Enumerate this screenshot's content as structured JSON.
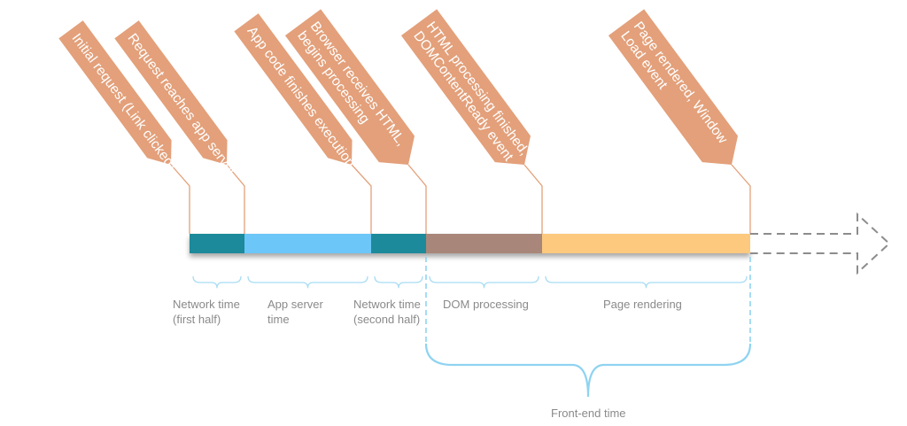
{
  "events": [
    {
      "id": "initial-request",
      "lines": [
        "Initial request (Link clicked)"
      ]
    },
    {
      "id": "request-reaches-server",
      "lines": [
        "Request reaches app server"
      ]
    },
    {
      "id": "app-code-finishes",
      "lines": [
        "App code finishes execution"
      ]
    },
    {
      "id": "browser-receives-html",
      "lines": [
        "Browser receives HTML,",
        "begins processing"
      ]
    },
    {
      "id": "html-processing-finished",
      "lines": [
        "HTML processing finished,",
        "DOMContentReady event"
      ]
    },
    {
      "id": "page-rendered",
      "lines": [
        "Page rendered, Window",
        "Load event"
      ]
    }
  ],
  "segments": [
    {
      "id": "network-first",
      "color": "#1f8a9a",
      "label": [
        "Network time",
        "(first half)"
      ]
    },
    {
      "id": "app-server",
      "color": "#6cc6f7",
      "label": [
        "App server",
        "time"
      ]
    },
    {
      "id": "network-second",
      "color": "#1f8a9a",
      "label": [
        "Network time",
        "(second half)"
      ]
    },
    {
      "id": "dom-processing",
      "color": "#a8877a",
      "label": [
        "DOM processing"
      ]
    },
    {
      "id": "page-rendering",
      "color": "#fcc97e",
      "label": [
        "Page rendering"
      ]
    }
  ],
  "frontend": {
    "label": "Front-end time"
  },
  "colors": {
    "flag": "#e3a07a",
    "brace": "#8fd3f1",
    "arrow": "#8c8c8c"
  }
}
